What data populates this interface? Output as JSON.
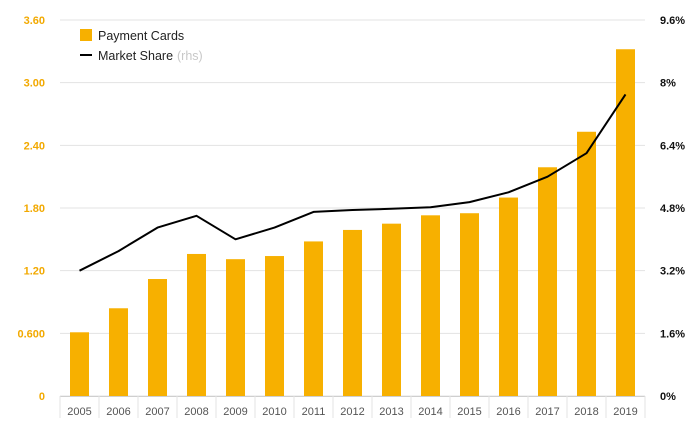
{
  "chart_data": {
    "type": "bar",
    "title": "",
    "categories": [
      "2005",
      "2006",
      "2007",
      "2008",
      "2009",
      "2010",
      "2011",
      "2012",
      "2013",
      "2014",
      "2015",
      "2016",
      "2017",
      "2018",
      "2019"
    ],
    "series": [
      {
        "name": "Payment Cards",
        "type": "bar",
        "axis": "left",
        "color": "#f7b000",
        "values": [
          0.61,
          0.84,
          1.12,
          1.36,
          1.31,
          1.34,
          1.48,
          1.59,
          1.65,
          1.73,
          1.75,
          1.9,
          2.19,
          2.53,
          3.32
        ]
      },
      {
        "name": "Market Share",
        "type": "line",
        "axis": "right",
        "color": "#000000",
        "values": [
          3.2,
          3.7,
          4.3,
          4.6,
          4.0,
          4.3,
          4.7,
          4.75,
          4.78,
          4.82,
          4.95,
          5.2,
          5.6,
          6.2,
          7.7
        ]
      }
    ],
    "y_left": {
      "ylim": [
        0,
        3.6
      ],
      "ticks": [
        0,
        0.6,
        1.2,
        1.8,
        2.4,
        3.0,
        3.6
      ],
      "tick_labels": [
        "0",
        "0.600",
        "1.20",
        "1.80",
        "2.40",
        "3.00",
        "3.60"
      ],
      "color": "#f2a900"
    },
    "y_right": {
      "ylim": [
        0,
        9.6
      ],
      "ticks": [
        0,
        1.6,
        3.2,
        4.8,
        6.4,
        8.0,
        9.6
      ],
      "tick_labels": [
        "0%",
        "1.6%",
        "3.2%",
        "4.8%",
        "6.4%",
        "8%",
        "9.6%"
      ],
      "color": "#111111"
    },
    "grid": true,
    "legend": {
      "position": "top-left",
      "items": [
        {
          "label": "Payment Cards",
          "suffix": "",
          "symbol": "square",
          "color": "#f7b000"
        },
        {
          "label": "Market Share",
          "suffix": "(rhs)",
          "symbol": "line",
          "color": "#000000"
        }
      ]
    },
    "xlabel": "",
    "ylabel": ""
  }
}
